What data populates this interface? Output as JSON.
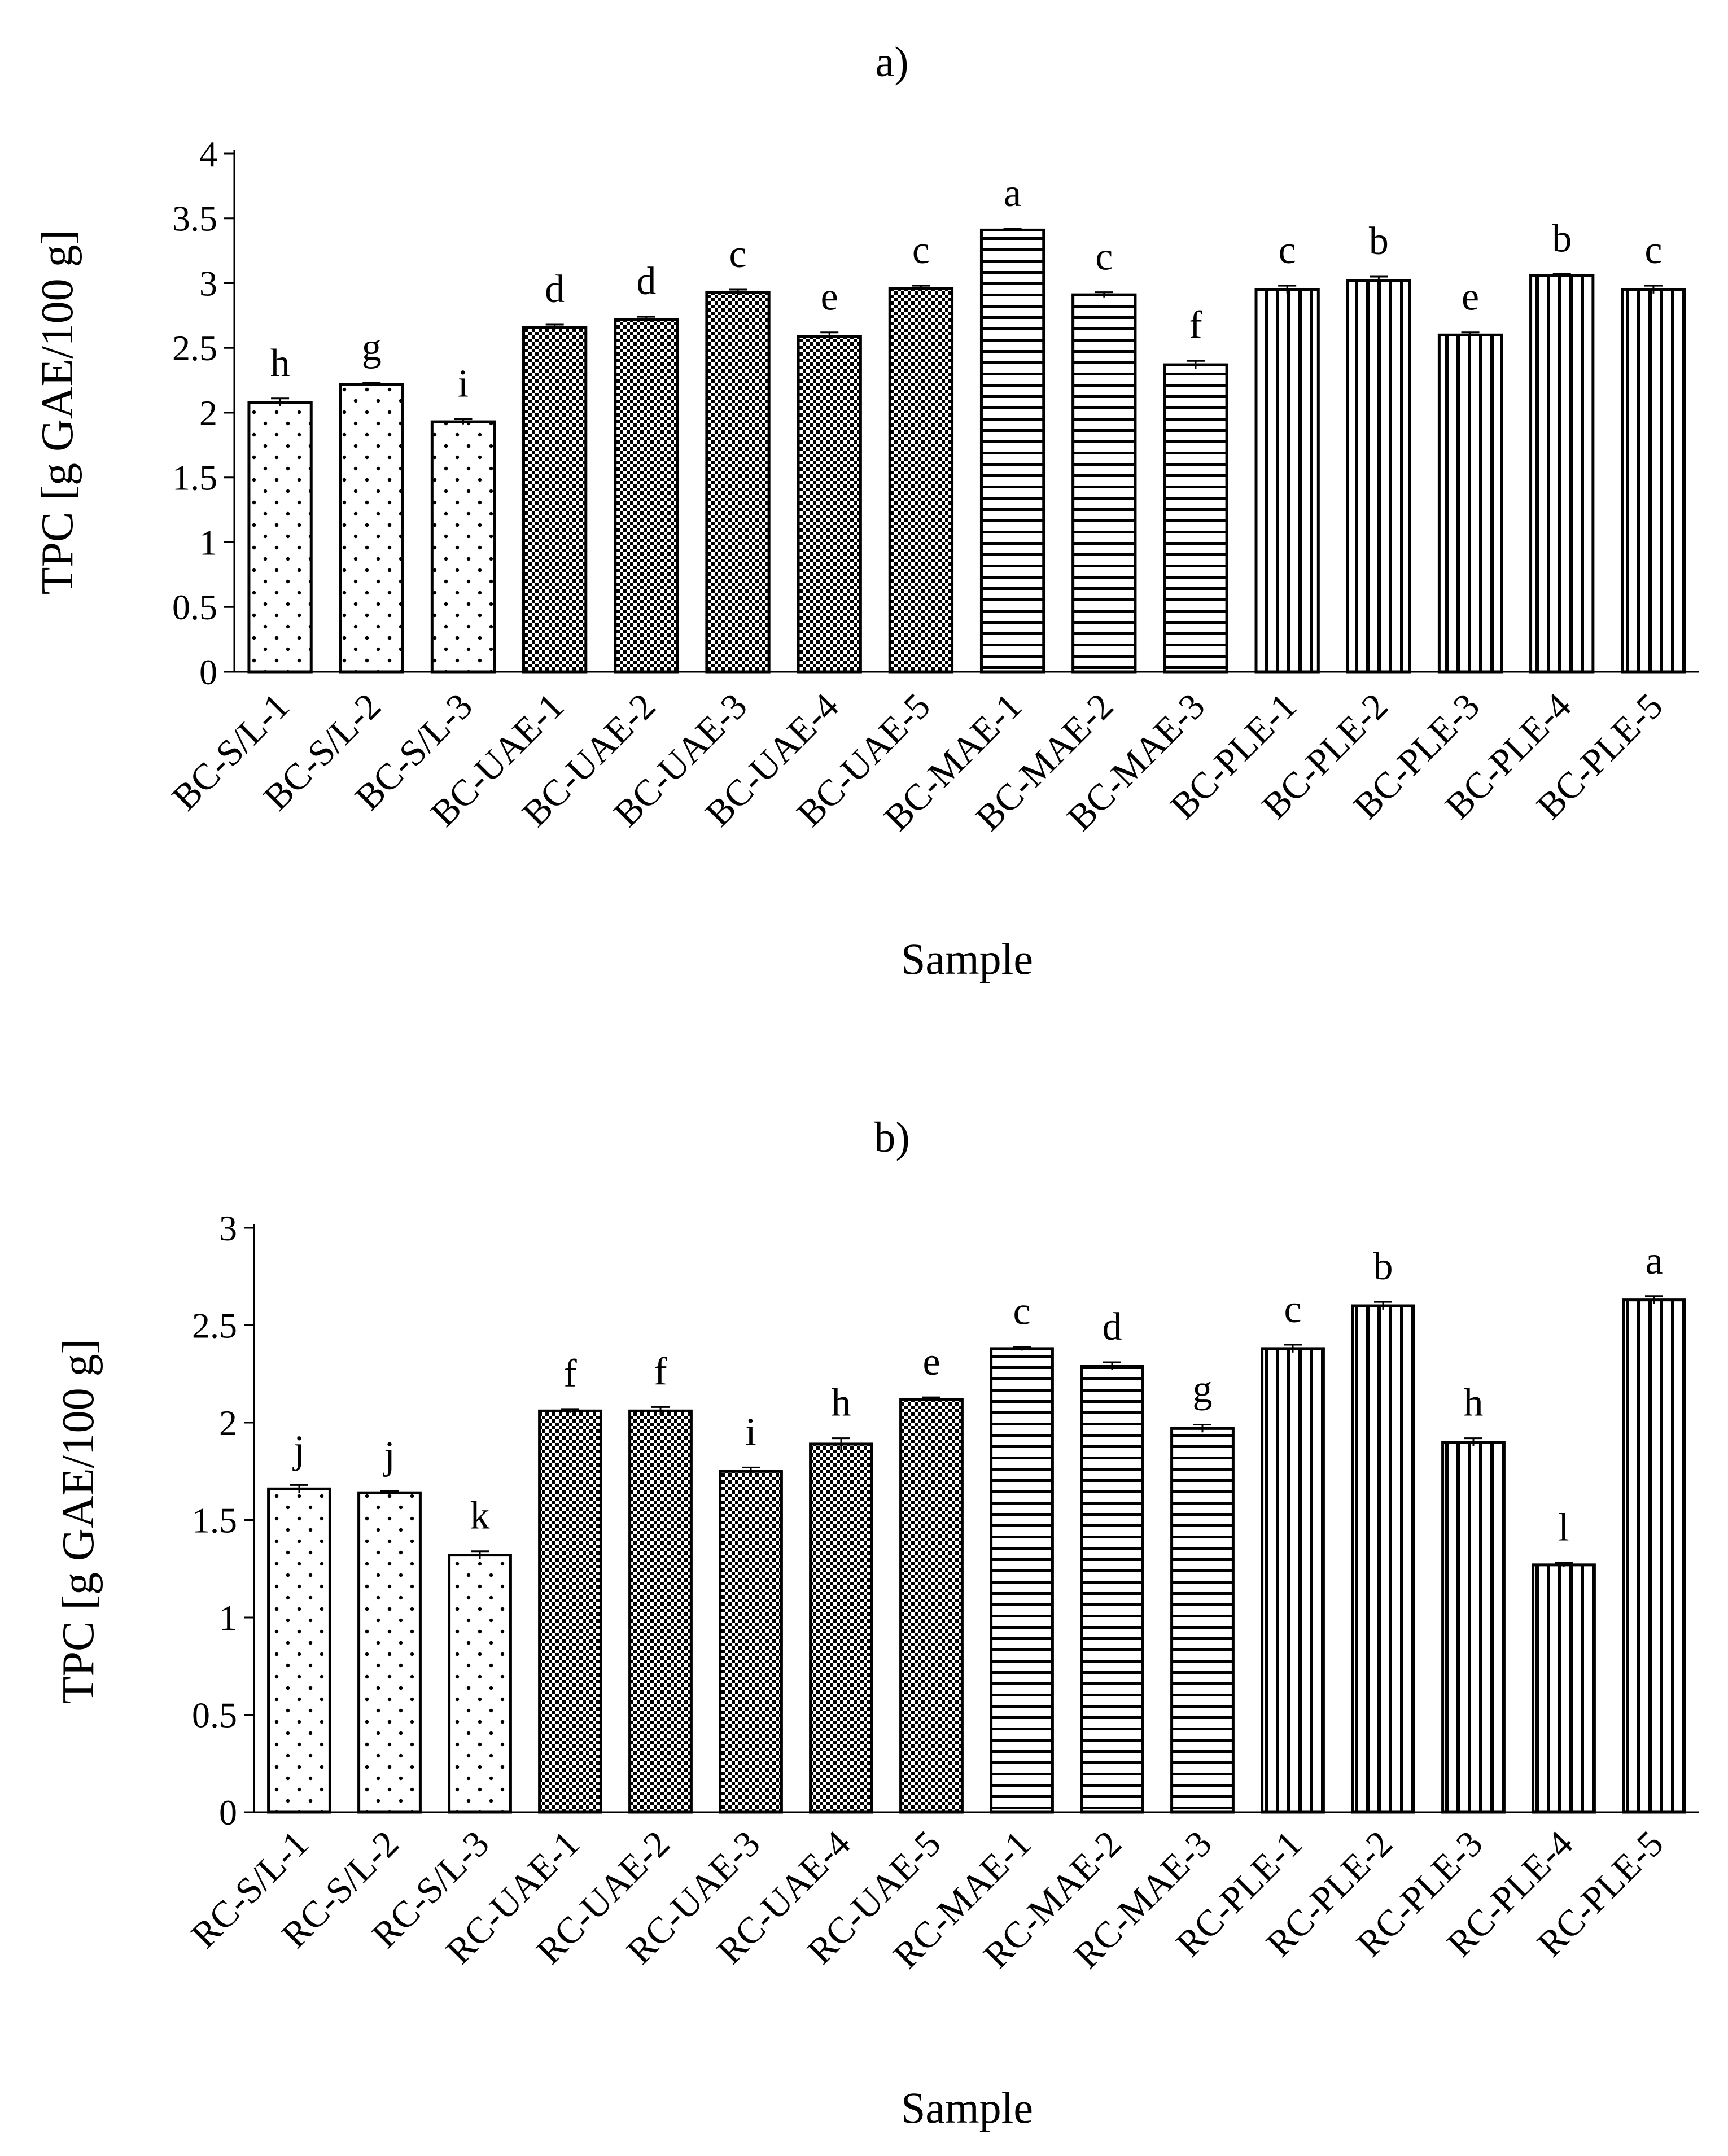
{
  "chart_data": [
    {
      "panel": "a)",
      "type": "bar",
      "title": "a)",
      "xlabel": "Sample",
      "ylabel": "TPC [g GAE/100 g]",
      "ylim": [
        0,
        4
      ],
      "yticks": [
        "0",
        "0.5",
        "1",
        "1.5",
        "2",
        "2.5",
        "3",
        "3.5",
        "4"
      ],
      "grid": false,
      "categories": [
        "BC-S/L-1",
        "BC-S/L-2",
        "BC-S/L-3",
        "BC-UAE-1",
        "BC-UAE-2",
        "BC-UAE-3",
        "BC-UAE-4",
        "BC-UAE-5",
        "BC-MAE-1",
        "BC-MAE-2",
        "BC-MAE-3",
        "BC-PLE-1",
        "BC-PLE-2",
        "BC-PLE-3",
        "BC-PLE-4",
        "BC-PLE-5"
      ],
      "values": [
        2.08,
        2.22,
        1.93,
        2.66,
        2.72,
        2.93,
        2.59,
        2.96,
        3.41,
        2.91,
        2.37,
        2.95,
        3.02,
        2.6,
        3.06,
        2.95
      ],
      "errors": [
        0.03,
        0.01,
        0.02,
        0.02,
        0.02,
        0.02,
        0.03,
        0.02,
        0.01,
        0.02,
        0.03,
        0.03,
        0.03,
        0.02,
        0.01,
        0.03
      ],
      "letters": [
        "h",
        "g",
        "i",
        "d",
        "d",
        "c",
        "e",
        "c",
        "a",
        "c",
        "f",
        "c",
        "b",
        "e",
        "b",
        "c"
      ],
      "groups": [
        "dots",
        "dots",
        "dots",
        "checker",
        "checker",
        "checker",
        "checker",
        "checker",
        "hlines",
        "hlines",
        "hlines",
        "vlines",
        "vlines",
        "vlines",
        "vlines",
        "vlines"
      ]
    },
    {
      "panel": "b)",
      "type": "bar",
      "title": "b)",
      "xlabel": "Sample",
      "ylabel": "TPC [g GAE/100 g]",
      "ylim": [
        0,
        3
      ],
      "yticks": [
        "0",
        "0.5",
        "1",
        "1.5",
        "2",
        "2.5",
        "3"
      ],
      "grid": false,
      "categories": [
        "RC-S/L-1",
        "RC-S/L-2",
        "RC-S/L-3",
        "RC-UAE-1",
        "RC-UAE-2",
        "RC-UAE-3",
        "RC-UAE-4",
        "RC-UAE-5",
        "RC-MAE-1",
        "RC-MAE-2",
        "RC-MAE-3",
        "RC-PLE-1",
        "RC-PLE-2",
        "RC-PLE-3",
        "RC-PLE-4",
        "RC-PLE-5"
      ],
      "values": [
        1.66,
        1.64,
        1.32,
        2.06,
        2.06,
        1.75,
        1.89,
        2.12,
        2.38,
        2.29,
        1.97,
        2.38,
        2.6,
        1.9,
        1.27,
        2.63
      ],
      "errors": [
        0.02,
        0.01,
        0.02,
        0.01,
        0.02,
        0.02,
        0.03,
        0.01,
        0.01,
        0.02,
        0.02,
        0.02,
        0.02,
        0.02,
        0.01,
        0.02
      ],
      "letters": [
        "j",
        "j",
        "k",
        "f",
        "f",
        "i",
        "h",
        "e",
        "c",
        "d",
        "g",
        "c",
        "b",
        "h",
        "l",
        "a"
      ],
      "groups": [
        "dots",
        "dots",
        "dots",
        "checker",
        "checker",
        "checker",
        "checker",
        "checker",
        "hlines",
        "hlines",
        "hlines",
        "vlines",
        "vlines",
        "vlines",
        "vlines",
        "vlines"
      ]
    }
  ]
}
